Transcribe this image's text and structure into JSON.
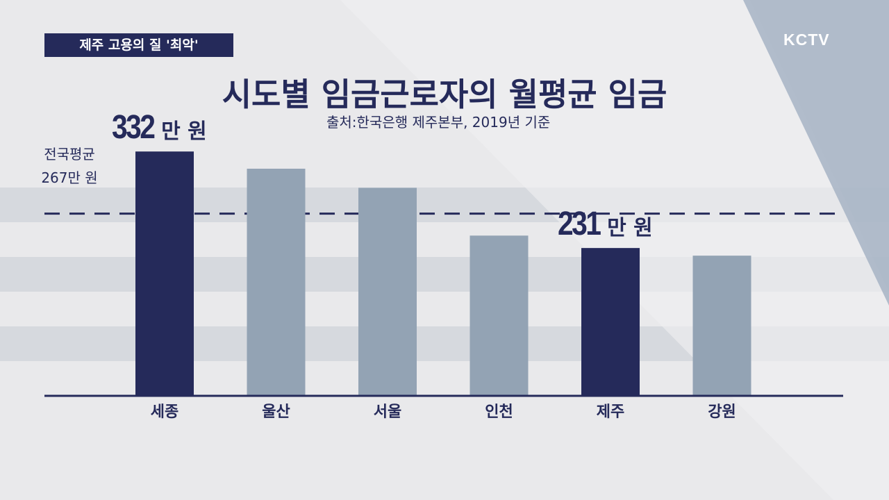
{
  "tag": "제주 고용의 질 '최악'",
  "logo": "KCTV",
  "title": "시도별 임금근로자의 월평균 임금",
  "source": "출처:한국은행 제주본부, 2019년 기준",
  "colors": {
    "highlight": "#252a5a",
    "normal": "#93a3b4",
    "axis": "#252a5a"
  },
  "chart_data": {
    "type": "bar",
    "title": "시도별 임금근로자의 월평균 임금",
    "unit": "만 원",
    "categories": [
      "세종",
      "울산",
      "서울",
      "인천",
      "제주",
      "강원"
    ],
    "values": [
      332,
      314,
      294,
      244,
      231,
      223
    ],
    "highlighted": [
      "세종",
      "제주"
    ],
    "labels": {
      "세종": "332",
      "제주": "231"
    },
    "reference_line": {
      "label": "전국평균",
      "value": 267,
      "value_text": "267만 원",
      "style": "dashed"
    },
    "ylim": [
      0,
      350
    ]
  },
  "big_labels": [
    {
      "num": "332",
      "unit": "만 원"
    },
    {
      "num": "231",
      "unit": "만 원"
    }
  ],
  "avg": {
    "label": "전국평균",
    "value_text": "267만 원"
  }
}
